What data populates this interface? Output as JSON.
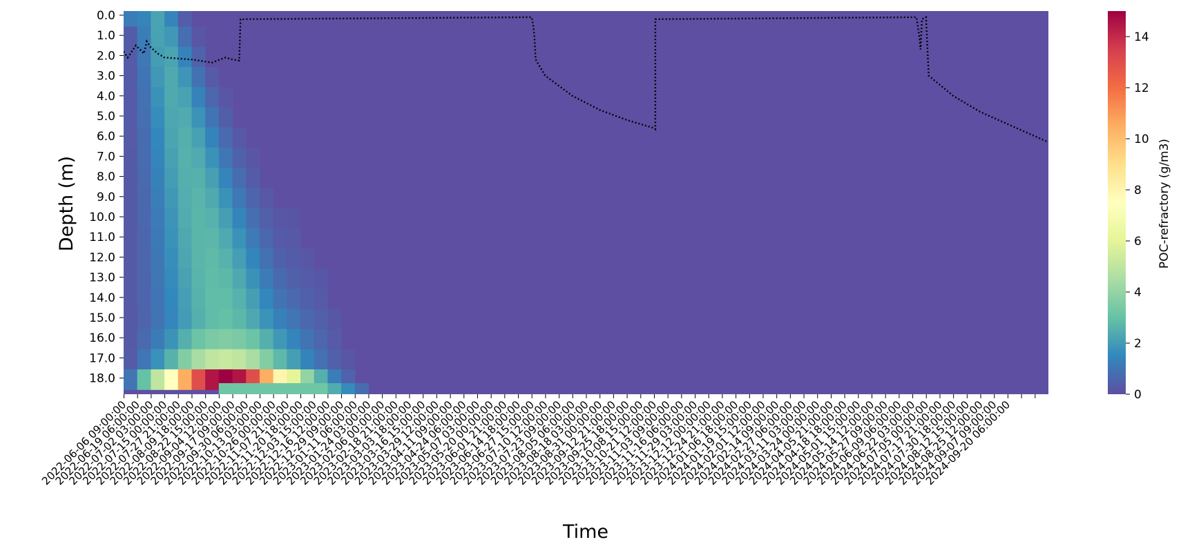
{
  "chart_data": {
    "type": "heatmap",
    "title": "",
    "xlabel": "Time",
    "ylabel": "Depth (m)",
    "colorbar": {
      "label": "POC-refractory  (g/m3)",
      "range": [
        0,
        15
      ],
      "ticks": [
        "0",
        "2",
        "4",
        "6",
        "8",
        "10",
        "12",
        "14"
      ],
      "colormap": "Spectral_r",
      "colors": [
        "#5e4fa2",
        "#3288bd",
        "#66c2a5",
        "#abdda4",
        "#e6f598",
        "#ffffbf",
        "#fee08b",
        "#fdae61",
        "#f46d43",
        "#d53e4f",
        "#9e0142"
      ]
    },
    "y_ticks": [
      "0.0",
      "1.0",
      "2.0",
      "3.0",
      "4.0",
      "5.0",
      "6.0",
      "7.0",
      "8.0",
      "9.0",
      "10.0",
      "11.0",
      "12.0",
      "13.0",
      "14.0",
      "15.0",
      "16.0",
      "17.0",
      "18.0"
    ],
    "x_ticks": [
      "2022-06-06 09:00:00",
      "2022-06-19 06:00:00",
      "2022-07-02 03:00:00",
      "2022-07-15 00:00:00",
      "2022-07-27 21:00:00",
      "2022-08-09 18:00:00",
      "2022-08-22 15:00:00",
      "2022-09-04 12:00:00",
      "2022-09-17 09:00:00",
      "2022-09-30 06:00:00",
      "2022-10-13 03:00:00",
      "2022-10-26 00:00:00",
      "2022-11-07 21:00:00",
      "2022-11-20 18:00:00",
      "2022-12-03 15:00:00",
      "2022-12-16 12:00:00",
      "2022-12-29 09:00:00",
      "2023-01-11 06:00:00",
      "2023-01-24 03:00:00",
      "2023-02-06 00:00:00",
      "2023-02-18 21:00:00",
      "2023-03-03 18:00:00",
      "2023-03-16 15:00:00",
      "2023-03-29 12:00:00",
      "2023-04-11 09:00:00",
      "2023-04-24 06:00:00",
      "2023-05-07 03:00:00",
      "2023-05-20 00:00:00",
      "2023-06-01 21:00:00",
      "2023-06-14 18:00:00",
      "2023-06-27 15:00:00",
      "2023-07-10 12:00:00",
      "2023-07-23 09:00:00",
      "2023-08-05 06:00:00",
      "2023-08-18 03:00:00",
      "2023-08-31 00:00:00",
      "2023-09-12 21:00:00",
      "2023-09-25 18:00:00",
      "2023-10-08 15:00:00",
      "2023-10-21 12:00:00",
      "2023-11-03 09:00:00",
      "2023-11-16 06:00:00",
      "2023-11-29 03:00:00",
      "2023-12-12 00:00:00",
      "2023-12-24 21:00:00",
      "2024-01-06 18:00:00",
      "2024-01-19 15:00:00",
      "2024-02-01 12:00:00",
      "2024-02-14 09:00:00",
      "2024-02-27 06:00:00",
      "2024-03-11 03:00:00",
      "2024-03-24 00:00:00",
      "2024-04-05 21:00:00",
      "2024-04-18 18:00:00",
      "2024-05-01 15:00:00",
      "2024-05-14 12:00:00",
      "2024-05-27 09:00:00",
      "2024-06-09 06:00:00",
      "2024-06-22 03:00:00",
      "2024-07-05 00:00:00",
      "2024-07-17 21:00:00",
      "2024-07-30 18:00:00",
      "2024-08-12 15:00:00",
      "2024-08-25 12:00:00",
      "2024-09-07 09:00:00",
      "2024-09-20 06:00:00"
    ],
    "x_tick_count_total": 68,
    "depth_range": [
      0,
      18.6
    ],
    "heatmap_summary": "Max ~15 g/m3 at depth 18.0 m around 2022-10-13; bottom layer (18.5 m) ~3; values decay with time after ~2022-12 and are ~0 elsewhere",
    "heatmap_profile": {
      "columns_total": 68,
      "peak_column": 10,
      "bottom_row_values": [
        1,
        3,
        5,
        7.5,
        10.5,
        13,
        14.5,
        15,
        14.5,
        13,
        10.5,
        8,
        6,
        4,
        2.5,
        1.2,
        0.5,
        0.1,
        0
      ],
      "bottom_layer_value": 3.2
    },
    "mixed_layer_depth": {
      "style": "dotted black line",
      "points": [
        [
          0,
          1.8
        ],
        [
          0.3,
          2.1
        ],
        [
          0.6,
          1.8
        ],
        [
          0.9,
          1.5
        ],
        [
          1.2,
          1.7
        ],
        [
          1.5,
          1.9
        ],
        [
          1.7,
          1.3
        ],
        [
          2.0,
          1.6
        ],
        [
          2.5,
          1.9
        ],
        [
          3,
          2.1
        ],
        [
          4,
          2.15
        ],
        [
          5,
          2.2
        ],
        [
          6.5,
          2.35
        ],
        [
          7.5,
          2.1
        ],
        [
          8,
          2.2
        ],
        [
          8.5,
          2.25
        ],
        [
          8.6,
          0.2
        ],
        [
          30.0,
          0.1
        ],
        [
          30.1,
          0.4
        ],
        [
          30.2,
          1.0
        ],
        [
          30.3,
          2.2
        ],
        [
          31,
          3.0
        ],
        [
          33,
          4.0
        ],
        [
          35,
          4.7
        ],
        [
          37,
          5.2
        ],
        [
          39,
          5.6
        ],
        [
          39.1,
          5.65
        ],
        [
          39.1,
          0.2
        ],
        [
          58.3,
          0.1
        ],
        [
          58.5,
          1.0
        ],
        [
          58.6,
          1.7
        ],
        [
          58.7,
          0.2
        ],
        [
          59.0,
          0.1
        ],
        [
          59.2,
          3.0
        ],
        [
          61,
          4.0
        ],
        [
          63,
          4.8
        ],
        [
          65,
          5.4
        ],
        [
          68,
          6.3
        ]
      ]
    }
  }
}
